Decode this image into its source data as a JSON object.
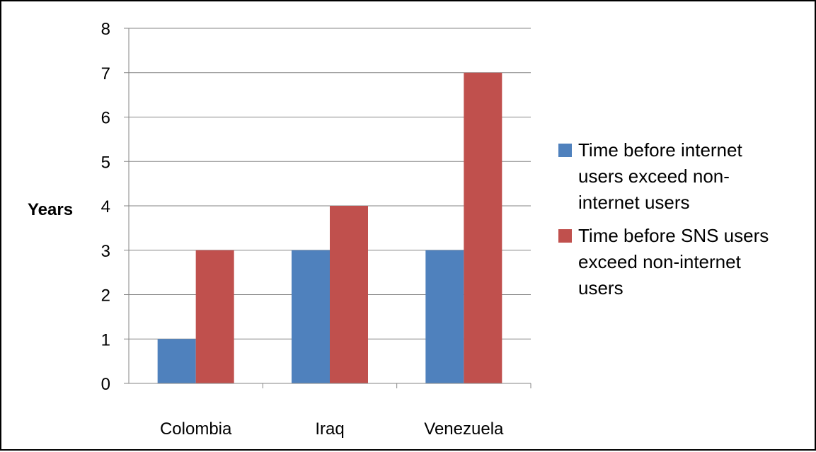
{
  "chart_data": {
    "type": "bar",
    "title": "",
    "xlabel": "",
    "ylabel": "Years",
    "categories": [
      "Colombia",
      "Iraq",
      "Venezuela"
    ],
    "ylim": [
      0,
      8
    ],
    "yticks": [
      0,
      1,
      2,
      3,
      4,
      5,
      6,
      7,
      8
    ],
    "grid": true,
    "legend_position": "right",
    "series": [
      {
        "name": "Time before internet users exceed non-internet users",
        "legend_lines": [
          "Time before internet",
          "users exceed non-",
          "internet users"
        ],
        "color": "#4f81bd",
        "values": [
          1,
          3,
          3
        ]
      },
      {
        "name": "Time before SNS users exceed non-internet users",
        "legend_lines": [
          "Time before SNS users",
          "exceed non-internet",
          "users"
        ],
        "color": "#c0504d",
        "values": [
          3,
          4,
          7
        ]
      }
    ]
  }
}
